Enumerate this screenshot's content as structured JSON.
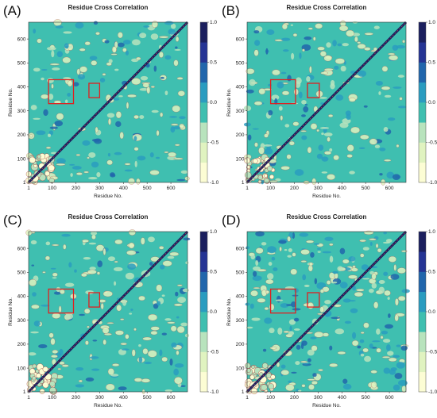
{
  "chart_data": [
    {
      "type": "heatmap",
      "panel_label": "(A)",
      "title": "Residue Cross Correlation",
      "xlabel": "Residue No.",
      "ylabel": "Residue No.",
      "xlim": [
        1,
        670
      ],
      "ylim": [
        1,
        670
      ],
      "xticks": [
        "1",
        "100",
        "200",
        "300",
        "400",
        "500",
        "600"
      ],
      "yticks": [
        "1",
        "100",
        "200",
        "300",
        "400",
        "500",
        "600"
      ],
      "colorbar": {
        "range": [
          -1.0,
          1.0
        ],
        "ticks": [
          "1.0",
          "0.5",
          "0.0",
          "-0.5",
          "-1.0"
        ]
      },
      "highlight_boxes": [
        {
          "x": [
            85,
            190
          ],
          "y": [
            330,
            430
          ]
        },
        {
          "x": [
            255,
            300
          ],
          "y": [
            355,
            415
          ]
        }
      ],
      "colors": [
        "#fcfdd4",
        "#e0f3c0",
        "#b8e3bd",
        "#3fbfb0",
        "#2a9cc0",
        "#2166ac",
        "#253494",
        "#1b1f5e"
      ]
    },
    {
      "type": "heatmap",
      "panel_label": "(B)",
      "title": "Residue Cross Correlation",
      "xlabel": "Residue No.",
      "ylabel": "Residue No.",
      "xlim": [
        1,
        670
      ],
      "ylim": [
        1,
        670
      ],
      "xticks": [
        "1",
        "100",
        "200",
        "300",
        "400",
        "500",
        "600"
      ],
      "yticks": [
        "1",
        "100",
        "200",
        "300",
        "400",
        "500",
        "600"
      ],
      "colorbar": {
        "range": [
          -1.0,
          1.0
        ],
        "ticks": [
          "1.0",
          "0.5",
          "0.0",
          "-0.5",
          "-1.0"
        ]
      },
      "highlight_boxes": [
        {
          "x": [
            100,
            205
          ],
          "y": [
            330,
            430
          ]
        },
        {
          "x": [
            255,
            305
          ],
          "y": [
            355,
            415
          ]
        }
      ]
    },
    {
      "type": "heatmap",
      "panel_label": "(C)",
      "title": "Residue Cross Correlation",
      "xlabel": "Residue No.",
      "ylabel": "Residue No.",
      "xlim": [
        1,
        670
      ],
      "ylim": [
        1,
        670
      ],
      "xticks": [
        "1",
        "100",
        "200",
        "300",
        "400",
        "500",
        "600"
      ],
      "yticks": [
        "1",
        "100",
        "200",
        "300",
        "400",
        "500",
        "600"
      ],
      "colorbar": {
        "range": [
          -1.0,
          1.0
        ],
        "ticks": [
          "1.0",
          "0.5",
          "0.0",
          "-0.5",
          "-1.0"
        ]
      },
      "highlight_boxes": [
        {
          "x": [
            85,
            190
          ],
          "y": [
            330,
            430
          ]
        },
        {
          "x": [
            255,
            300
          ],
          "y": [
            355,
            415
          ]
        }
      ]
    },
    {
      "type": "heatmap",
      "panel_label": "(D)",
      "title": "Residue Cross Correlation",
      "xlabel": "Residue No.",
      "ylabel": "Residue No.",
      "xlim": [
        1,
        670
      ],
      "ylim": [
        1,
        670
      ],
      "xticks": [
        "1",
        "100",
        "200",
        "300",
        "400",
        "500",
        "600"
      ],
      "yticks": [
        "1",
        "100",
        "200",
        "300",
        "400",
        "500",
        "600"
      ],
      "colorbar": {
        "range": [
          -1.0,
          1.0
        ],
        "ticks": [
          "1.0",
          "0.5",
          "0.0",
          "-0.5",
          "-1.0"
        ]
      },
      "highlight_boxes": [
        {
          "x": [
            100,
            205
          ],
          "y": [
            330,
            430
          ]
        },
        {
          "x": [
            255,
            305
          ],
          "y": [
            355,
            415
          ]
        }
      ]
    }
  ]
}
